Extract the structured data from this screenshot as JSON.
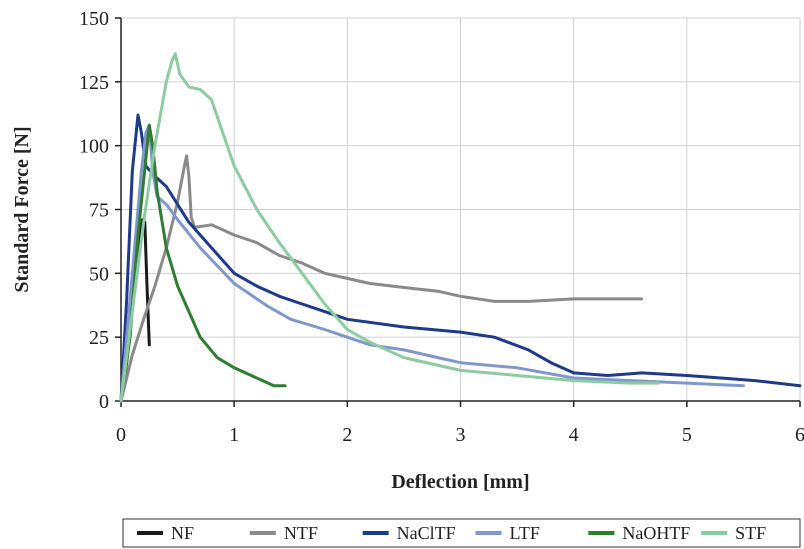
{
  "chart_data": {
    "type": "line",
    "title": "",
    "xlabel": "Deflection [mm]",
    "ylabel": "Standard Force [N]",
    "xlim": [
      0,
      6
    ],
    "ylim": [
      0,
      150
    ],
    "xticks": [
      0,
      1,
      2,
      3,
      4,
      5,
      6
    ],
    "yticks": [
      0,
      25,
      50,
      75,
      100,
      125,
      150
    ],
    "grid": true,
    "legend_position": "bottom",
    "series": [
      {
        "name": "NF",
        "color": "#1a1a1a",
        "points": [
          [
            0,
            0
          ],
          [
            0.05,
            15
          ],
          [
            0.1,
            38
          ],
          [
            0.15,
            60
          ],
          [
            0.19,
            71
          ],
          [
            0.21,
            70
          ],
          [
            0.23,
            45
          ],
          [
            0.25,
            22
          ]
        ]
      },
      {
        "name": "NTF",
        "color": "#8a8a8a",
        "points": [
          [
            0,
            0
          ],
          [
            0.1,
            18
          ],
          [
            0.2,
            32
          ],
          [
            0.3,
            45
          ],
          [
            0.4,
            60
          ],
          [
            0.5,
            78
          ],
          [
            0.56,
            92
          ],
          [
            0.58,
            96
          ],
          [
            0.6,
            88
          ],
          [
            0.62,
            72
          ],
          [
            0.65,
            68
          ],
          [
            0.8,
            69
          ],
          [
            1.0,
            65
          ],
          [
            1.2,
            62
          ],
          [
            1.4,
            57
          ],
          [
            1.6,
            54
          ],
          [
            1.8,
            50
          ],
          [
            2.0,
            48
          ],
          [
            2.2,
            46
          ],
          [
            2.4,
            45
          ],
          [
            2.6,
            44
          ],
          [
            2.8,
            43
          ],
          [
            3.0,
            41
          ],
          [
            3.3,
            39
          ],
          [
            3.6,
            39
          ],
          [
            4.0,
            40
          ],
          [
            4.3,
            40
          ],
          [
            4.6,
            40
          ]
        ]
      },
      {
        "name": "NaClTF",
        "color": "#1f3a8a",
        "points": [
          [
            0,
            0
          ],
          [
            0.05,
            40
          ],
          [
            0.1,
            90
          ],
          [
            0.15,
            112
          ],
          [
            0.18,
            105
          ],
          [
            0.22,
            92
          ],
          [
            0.3,
            88
          ],
          [
            0.4,
            84
          ],
          [
            0.5,
            77
          ],
          [
            0.6,
            70
          ],
          [
            0.8,
            60
          ],
          [
            1.0,
            50
          ],
          [
            1.2,
            45
          ],
          [
            1.4,
            41
          ],
          [
            1.6,
            38
          ],
          [
            1.8,
            35
          ],
          [
            2.0,
            32
          ],
          [
            2.5,
            29
          ],
          [
            3.0,
            27
          ],
          [
            3.3,
            25
          ],
          [
            3.6,
            20
          ],
          [
            3.8,
            15
          ],
          [
            4.0,
            11
          ],
          [
            4.3,
            10
          ],
          [
            4.6,
            11
          ],
          [
            5.0,
            10
          ],
          [
            5.3,
            9
          ],
          [
            5.6,
            8
          ],
          [
            6.0,
            6
          ]
        ]
      },
      {
        "name": "LTF",
        "color": "#7f98cc",
        "points": [
          [
            0,
            0
          ],
          [
            0.05,
            25
          ],
          [
            0.12,
            60
          ],
          [
            0.18,
            90
          ],
          [
            0.22,
            105
          ],
          [
            0.25,
            108
          ],
          [
            0.28,
            90
          ],
          [
            0.32,
            80
          ],
          [
            0.4,
            77
          ],
          [
            0.5,
            71
          ],
          [
            0.7,
            60
          ],
          [
            1.0,
            46
          ],
          [
            1.3,
            37
          ],
          [
            1.5,
            32
          ],
          [
            1.8,
            28
          ],
          [
            2.0,
            25
          ],
          [
            2.2,
            22
          ],
          [
            2.5,
            20
          ],
          [
            2.8,
            17
          ],
          [
            3.0,
            15
          ],
          [
            3.5,
            13
          ],
          [
            4.0,
            9
          ],
          [
            4.5,
            8
          ],
          [
            5.0,
            7
          ],
          [
            5.5,
            6
          ]
        ]
      },
      {
        "name": "NaOHTF",
        "color": "#2e7d32",
        "points": [
          [
            0,
            0
          ],
          [
            0.08,
            25
          ],
          [
            0.15,
            65
          ],
          [
            0.22,
            95
          ],
          [
            0.25,
            108
          ],
          [
            0.28,
            100
          ],
          [
            0.32,
            82
          ],
          [
            0.4,
            60
          ],
          [
            0.5,
            45
          ],
          [
            0.6,
            35
          ],
          [
            0.7,
            25
          ],
          [
            0.85,
            17
          ],
          [
            1.0,
            13
          ],
          [
            1.2,
            9
          ],
          [
            1.35,
            6
          ],
          [
            1.45,
            6
          ]
        ]
      },
      {
        "name": "STF",
        "color": "#8ccca0",
        "points": [
          [
            0,
            0
          ],
          [
            0.1,
            35
          ],
          [
            0.2,
            70
          ],
          [
            0.3,
            100
          ],
          [
            0.4,
            125
          ],
          [
            0.45,
            133
          ],
          [
            0.48,
            136
          ],
          [
            0.52,
            128
          ],
          [
            0.6,
            123
          ],
          [
            0.7,
            122
          ],
          [
            0.8,
            118
          ],
          [
            0.9,
            105
          ],
          [
            1.0,
            92
          ],
          [
            1.2,
            75
          ],
          [
            1.4,
            62
          ],
          [
            1.6,
            50
          ],
          [
            1.8,
            38
          ],
          [
            2.0,
            28
          ],
          [
            2.2,
            23
          ],
          [
            2.5,
            17
          ],
          [
            3.0,
            12
          ],
          [
            3.5,
            10
          ],
          [
            4.0,
            8
          ],
          [
            4.5,
            7
          ],
          [
            4.75,
            7
          ]
        ]
      }
    ]
  }
}
